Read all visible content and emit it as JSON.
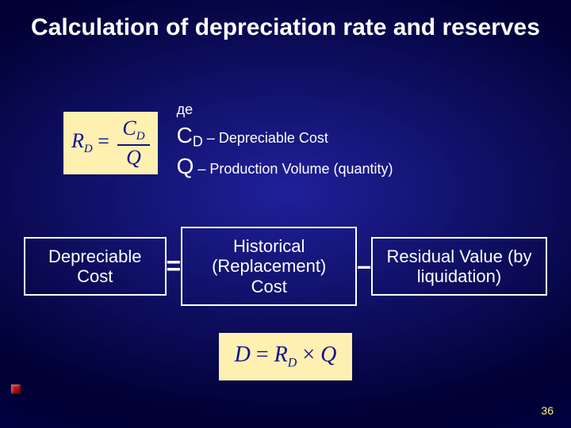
{
  "slide": {
    "background_gradient": {
      "from": "#000033",
      "mid": "#20209a",
      "to": "#000055"
    },
    "title": {
      "text": "Calculation of depreciation rate and reserves",
      "color": "#ffffff",
      "fontsize": 30
    },
    "page_number": {
      "text": "36",
      "color": "#fef08a",
      "fontsize": 14
    },
    "bullet_color": "#b80f0f"
  },
  "formula_box": {
    "background": "#fef0b0",
    "text_color": "#0f0f90",
    "lhs_main": "R",
    "lhs_sub": "D",
    "eq": " = ",
    "num_main": "C",
    "num_sub": "D",
    "den": "Q",
    "fontsize_main": 26,
    "fontsize_sub": 15
  },
  "defs": {
    "text_color": "#ffffff",
    "fontsize_small": 18,
    "where": "де",
    "line1": {
      "sym": "C",
      "sub": "D",
      "rest": " – Depreciable Cost"
    },
    "line2": {
      "sym": "Q",
      "sub": "",
      "rest": " – Production Volume (quantity)"
    }
  },
  "equation": {
    "text_color": "#ffffff",
    "border_color": "#ffffff",
    "fontsize": 22,
    "op_fontsize": 32,
    "term1": "Depreciable Cost",
    "op1": "=",
    "term2": "Historical (Replacement) Cost",
    "op2": "–",
    "term3": "Residual Value (by liquidation)"
  },
  "formula2": {
    "background": "#fef0b0",
    "text_color": "#0f0f90",
    "fontsize_main": 28,
    "fontsize_sub": 16,
    "lhs": "D",
    "eq1": " = ",
    "r": "R",
    "r_sub": "D",
    "times": " × ",
    "q": "Q"
  }
}
